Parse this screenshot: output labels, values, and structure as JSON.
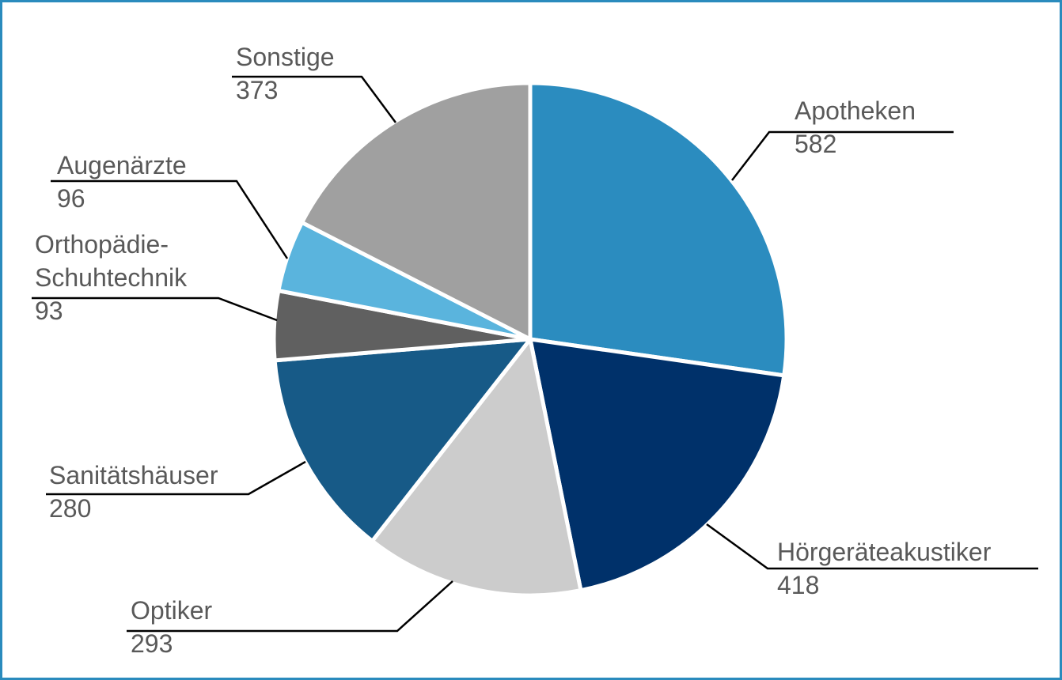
{
  "chart_data": {
    "type": "pie",
    "title": "",
    "slices": [
      {
        "name": "Apotheken",
        "value": 582,
        "color": "#2b8cbf"
      },
      {
        "name": "Hörgeräteakustiker",
        "value": 418,
        "color": "#00316a"
      },
      {
        "name": "Optiker",
        "value": 293,
        "color": "#cccccc"
      },
      {
        "name": "Sanitätshäuser",
        "value": 280,
        "color": "#175a87"
      },
      {
        "name": "Orthopädie-Schuhtechnik",
        "value": 93,
        "color": "#606060"
      },
      {
        "name": "Augenärzte",
        "value": 96,
        "color": "#5ab4dd"
      },
      {
        "name": "Sonstige",
        "value": 373,
        "color": "#a0a0a0"
      }
    ],
    "labels": {
      "apotheken": {
        "name": "Apotheken",
        "value": "582"
      },
      "hoergeraeteakustiker": {
        "name": "Hörgeräteakustiker",
        "value": "418"
      },
      "optiker": {
        "name": "Optiker",
        "value": "293"
      },
      "sanitaetshaeuser": {
        "name": "Sanitätshäuser",
        "value": "280"
      },
      "orthopaedie": {
        "name_line1": "Orthopädie-",
        "name_line2": "Schuhtechnik",
        "value": "93"
      },
      "augenaerzte": {
        "name": "Augenärzte",
        "value": "96"
      },
      "sonstige": {
        "name": "Sonstige",
        "value": "373"
      }
    }
  }
}
